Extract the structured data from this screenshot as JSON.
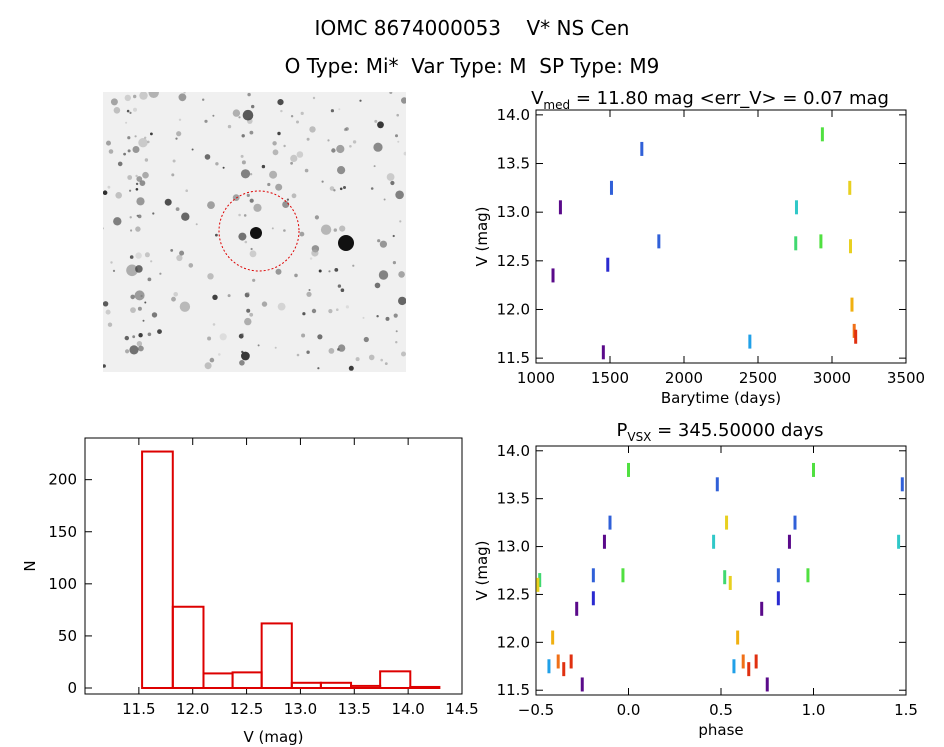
{
  "header": {
    "line1_id": "IOMC 8674000053",
    "line1_name": "V* NS Cen",
    "line2_otype": "O Type: Mi*",
    "line2_vartype": "Var Type: M",
    "line2_sptype": "SP Type: M9"
  },
  "colors": {
    "hist": "#dd0000",
    "circle": "#dd0000",
    "palette": [
      "#5a0a8a",
      "#2a2ad0",
      "#3060d8",
      "#20a0e8",
      "#30c8c8",
      "#40d870",
      "#50e040",
      "#e8d020",
      "#f0b010",
      "#f07018",
      "#e03010"
    ]
  },
  "chart_data": [
    {
      "type": "image",
      "name": "sky-thumbnail"
    },
    {
      "type": "scatter",
      "title_base": "V",
      "title_sub": "med",
      "title_rest": " = 11.80 mag <err_V> = 0.07 mag",
      "xlabel": "Barytime (days)",
      "ylabel": "V (mag)",
      "xlim": [
        1000,
        3500
      ],
      "ylim": [
        14.05,
        11.45
      ],
      "xticks": [
        1000,
        1500,
        2000,
        2500,
        3000,
        3500
      ],
      "yticks": [
        11.5,
        12.0,
        12.5,
        13.0,
        13.5,
        14.0
      ],
      "ytick_labels": [
        "11.5",
        "12.0",
        "12.5",
        "13.0",
        "13.5",
        "14.0"
      ],
      "points": [
        {
          "x": 1115,
          "y": 12.35,
          "c": 0
        },
        {
          "x": 1165,
          "y": 13.05,
          "c": 0
        },
        {
          "x": 1455,
          "y": 11.56,
          "c": 0
        },
        {
          "x": 1485,
          "y": 12.46,
          "c": 1
        },
        {
          "x": 1510,
          "y": 13.25,
          "c": 2
        },
        {
          "x": 1715,
          "y": 13.65,
          "c": 2
        },
        {
          "x": 1830,
          "y": 12.7,
          "c": 2
        },
        {
          "x": 2445,
          "y": 11.67,
          "c": 3
        },
        {
          "x": 2755,
          "y": 12.68,
          "c": 5
        },
        {
          "x": 2760,
          "y": 13.05,
          "c": 4
        },
        {
          "x": 2925,
          "y": 12.7,
          "c": 6
        },
        {
          "x": 2935,
          "y": 13.8,
          "c": 6
        },
        {
          "x": 3120,
          "y": 13.25,
          "c": 7
        },
        {
          "x": 3125,
          "y": 12.65,
          "c": 7
        },
        {
          "x": 3135,
          "y": 12.05,
          "c": 8
        },
        {
          "x": 3150,
          "y": 11.78,
          "c": 9
        },
        {
          "x": 3160,
          "y": 11.72,
          "c": 10
        }
      ]
    },
    {
      "type": "bar",
      "xlabel": "V (mag)",
      "ylabel": "N",
      "xlim": [
        11.0,
        14.5
      ],
      "ylim": [
        0,
        240
      ],
      "xticks": [
        11.5,
        12.0,
        12.5,
        13.0,
        13.5,
        14.0,
        14.5
      ],
      "xtick_labels": [
        "11.5",
        "12.0",
        "12.5",
        "13.0",
        "13.5",
        "14.0",
        "14.5"
      ],
      "yticks": [
        0,
        50,
        100,
        150,
        200
      ],
      "yticks_labels": [
        "0",
        "50",
        "100",
        "150",
        "200"
      ],
      "bin_edges": [
        11.53,
        11.815,
        12.1,
        12.37,
        12.64,
        12.92,
        13.19,
        13.47,
        13.74,
        14.02,
        14.29
      ],
      "values": [
        227,
        78,
        14,
        15,
        62,
        5,
        5,
        2,
        16,
        1
      ]
    },
    {
      "type": "scatter",
      "title_base": "P",
      "title_sub": "VSX",
      "title_rest": " = 345.50000 days",
      "xlabel": "phase",
      "ylabel": "V (mag)",
      "xlim": [
        -0.5,
        1.5
      ],
      "ylim": [
        14.05,
        11.45
      ],
      "xticks": [
        -0.5,
        0.0,
        0.5,
        1.0,
        1.5
      ],
      "xtick_labels": [
        "−0.5",
        "0.0",
        "0.5",
        "1.0",
        "1.5"
      ],
      "yticks": [
        11.5,
        12.0,
        12.5,
        13.0,
        13.5,
        14.0
      ],
      "ytick_labels": [
        "11.5",
        "12.0",
        "12.5",
        "13.0",
        "13.5",
        "14.0"
      ],
      "points": [
        {
          "x": -0.43,
          "y": 11.75,
          "c": 3
        },
        {
          "x": -0.41,
          "y": 12.05,
          "c": 8
        },
        {
          "x": -0.38,
          "y": 11.8,
          "c": 9
        },
        {
          "x": -0.35,
          "y": 11.72,
          "c": 10
        },
        {
          "x": -0.31,
          "y": 11.8,
          "c": 10
        },
        {
          "x": -0.25,
          "y": 11.56,
          "c": 0
        },
        {
          "x": -0.28,
          "y": 12.35,
          "c": 0
        },
        {
          "x": -0.19,
          "y": 12.46,
          "c": 1
        },
        {
          "x": -0.19,
          "y": 12.7,
          "c": 2
        },
        {
          "x": -0.13,
          "y": 13.05,
          "c": 0
        },
        {
          "x": -0.1,
          "y": 13.25,
          "c": 2
        },
        {
          "x": -0.03,
          "y": 12.7,
          "c": 6
        },
        {
          "x": 0.0,
          "y": 13.8,
          "c": 6
        },
        {
          "x": -0.48,
          "y": 12.65,
          "c": 5
        },
        {
          "x": -0.49,
          "y": 12.6,
          "c": 7
        },
        {
          "x": 0.46,
          "y": 13.05,
          "c": 4
        },
        {
          "x": 0.48,
          "y": 13.65,
          "c": 2
        },
        {
          "x": 0.52,
          "y": 12.68,
          "c": 5
        },
        {
          "x": 0.53,
          "y": 13.25,
          "c": 7
        },
        {
          "x": 0.55,
          "y": 12.62,
          "c": 7
        },
        {
          "x": 0.57,
          "y": 11.75,
          "c": 3
        },
        {
          "x": 0.59,
          "y": 12.05,
          "c": 8
        },
        {
          "x": 0.62,
          "y": 11.8,
          "c": 9
        },
        {
          "x": 0.65,
          "y": 11.72,
          "c": 10
        },
        {
          "x": 0.69,
          "y": 11.8,
          "c": 10
        },
        {
          "x": 0.75,
          "y": 11.56,
          "c": 0
        },
        {
          "x": 0.72,
          "y": 12.35,
          "c": 0
        },
        {
          "x": 0.81,
          "y": 12.46,
          "c": 1
        },
        {
          "x": 0.81,
          "y": 12.7,
          "c": 2
        },
        {
          "x": 0.87,
          "y": 13.05,
          "c": 0
        },
        {
          "x": 0.9,
          "y": 13.25,
          "c": 2
        },
        {
          "x": 0.97,
          "y": 12.7,
          "c": 6
        },
        {
          "x": 1.0,
          "y": 13.8,
          "c": 6
        },
        {
          "x": 1.46,
          "y": 13.05,
          "c": 4
        },
        {
          "x": 1.48,
          "y": 13.65,
          "c": 2
        }
      ]
    }
  ]
}
